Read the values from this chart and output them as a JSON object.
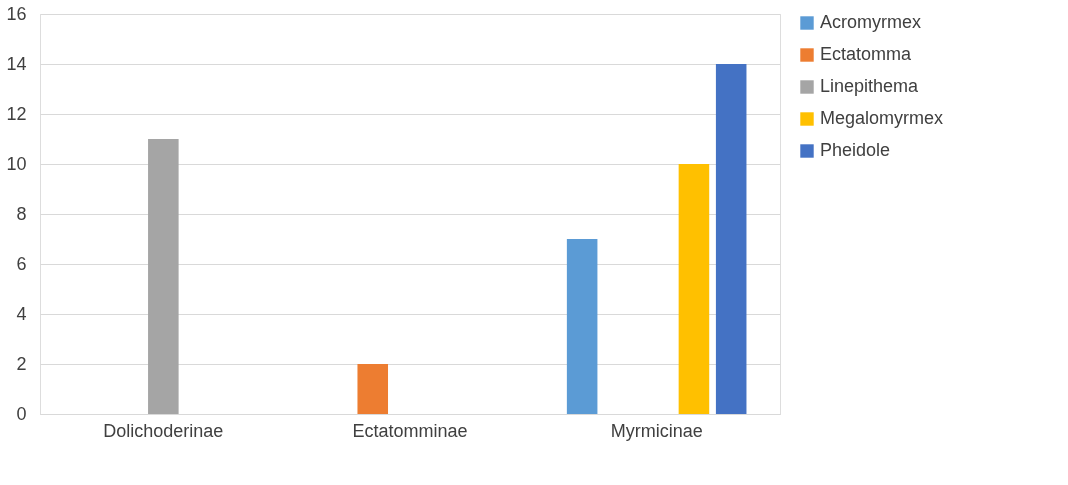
{
  "chart_data": {
    "type": "bar",
    "categories": [
      "Dolichoderinae",
      "Ectatomminae",
      "Myrmicinae"
    ],
    "series": [
      {
        "name": "Acromyrmex",
        "color": "#5b9bd5",
        "values": [
          null,
          null,
          7
        ]
      },
      {
        "name": "Ectatomma",
        "color": "#ed7d31",
        "values": [
          null,
          2,
          null
        ]
      },
      {
        "name": "Linepithema",
        "color": "#a5a5a5",
        "values": [
          11,
          null,
          null
        ]
      },
      {
        "name": "Megalomyrmex",
        "color": "#ffc000",
        "values": [
          null,
          null,
          10
        ]
      },
      {
        "name": "Pheidole",
        "color": "#4472c4",
        "values": [
          null,
          null,
          14
        ]
      }
    ],
    "ylim": [
      0,
      16
    ],
    "yticks": [
      0,
      2,
      4,
      6,
      8,
      10,
      12,
      14,
      16
    ],
    "grid": "y",
    "legend": "right"
  }
}
